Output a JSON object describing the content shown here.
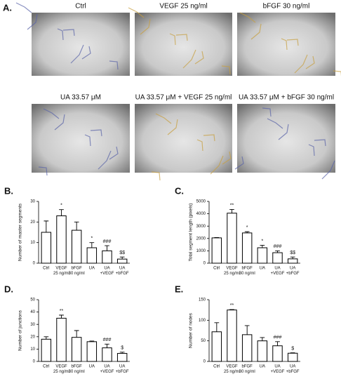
{
  "panel_a": {
    "label": "A.",
    "captions": [
      "Ctrl",
      "VEGF 25 ng/ml",
      "bFGF 30 ng/ml",
      "UA 33.57 μM",
      "UA 33.57 μM + VEGF 25 ng/ml",
      "UA 33.57 μM + bFGF 30 ng/ml"
    ]
  },
  "chart_data": [
    {
      "type": "bar",
      "panel_label": "B.",
      "y_label": "Number of master segments",
      "categories": [
        [
          "Ctrl"
        ],
        [
          "VEGF",
          "25 ng/ml"
        ],
        [
          "bFGF",
          "30 ng/ml"
        ],
        [
          "UA"
        ],
        [
          "UA",
          "+VEGF"
        ],
        [
          "UA",
          "+bFGF"
        ]
      ],
      "values": [
        15,
        23,
        16,
        7.5,
        6,
        2
      ],
      "errors": [
        5.5,
        3,
        4,
        2.5,
        2.5,
        1
      ],
      "annotations": [
        null,
        "*",
        null,
        "*",
        "###",
        "$$"
      ],
      "ylim": [
        0,
        30
      ],
      "yticks": [
        0,
        10,
        20,
        30
      ],
      "color": "#ffffff"
    },
    {
      "type": "bar",
      "panel_label": "C.",
      "y_label": "Total segment length (pixels)",
      "categories": [
        [
          "Ctrl"
        ],
        [
          "VEGF",
          "25 ng/ml"
        ],
        [
          "bFGF",
          "30 ng/ml"
        ],
        [
          "UA"
        ],
        [
          "UA",
          "+VEGF"
        ],
        [
          "UA",
          "+bFGF"
        ]
      ],
      "values": [
        2050,
        4050,
        2450,
        1250,
        850,
        350
      ],
      "errors": [
        30,
        300,
        100,
        200,
        150,
        150
      ],
      "annotations": [
        null,
        "**",
        "*",
        "*",
        "###",
        "$$"
      ],
      "ylim": [
        0,
        5000
      ],
      "yticks": [
        0,
        1000,
        2000,
        3000,
        4000,
        5000
      ],
      "color": "#ffffff"
    },
    {
      "type": "bar",
      "panel_label": "D.",
      "y_label": "Number of junctions",
      "categories": [
        [
          "Ctrl"
        ],
        [
          "VEGF",
          "25 ng/ml"
        ],
        [
          "bFGF",
          "30 ng/ml"
        ],
        [
          "UA"
        ],
        [
          "UA",
          "+VEGF"
        ],
        [
          "UA",
          "+bFGF"
        ]
      ],
      "values": [
        18,
        35,
        19.5,
        16,
        11,
        6.5
      ],
      "errors": [
        2,
        2.5,
        5.5,
        0.5,
        3,
        1
      ],
      "annotations": [
        null,
        "**",
        null,
        null,
        "###",
        "$"
      ],
      "ylim": [
        0,
        50
      ],
      "yticks": [
        0,
        10,
        20,
        30,
        40,
        50
      ],
      "color": "#ffffff"
    },
    {
      "type": "bar",
      "panel_label": "E.",
      "y_label": "Number of nodes",
      "categories": [
        [
          "Ctrl"
        ],
        [
          "VEGF",
          "25 ng/ml"
        ],
        [
          "bFGF",
          "30 ng/ml"
        ],
        [
          "UA"
        ],
        [
          "UA",
          "+VEGF"
        ],
        [
          "UA",
          "+bFGF"
        ]
      ],
      "values": [
        72,
        125,
        65,
        50,
        38,
        20
      ],
      "errors": [
        22,
        1,
        22,
        8,
        10,
        1
      ],
      "annotations": [
        null,
        "**",
        null,
        null,
        "###",
        "$"
      ],
      "ylim": [
        0,
        150
      ],
      "yticks": [
        0,
        50,
        100,
        150
      ],
      "color": "#ffffff"
    }
  ]
}
